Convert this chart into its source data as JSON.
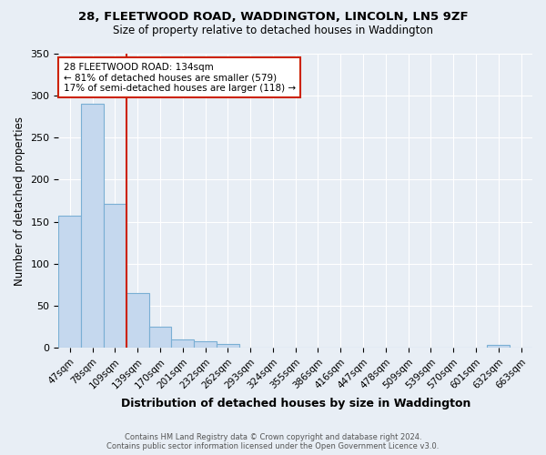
{
  "title": "28, FLEETWOOD ROAD, WADDINGTON, LINCOLN, LN5 9ZF",
  "subtitle": "Size of property relative to detached houses in Waddington",
  "xlabel": "Distribution of detached houses by size in Waddington",
  "ylabel": "Number of detached properties",
  "footnote1": "Contains HM Land Registry data © Crown copyright and database right 2024.",
  "footnote2": "Contains public sector information licensed under the Open Government Licence v3.0.",
  "annotation_line1": "28 FLEETWOOD ROAD: 134sqm",
  "annotation_line2": "← 81% of detached houses are smaller (579)",
  "annotation_line3": "17% of semi-detached houses are larger (118) →",
  "bar_labels": [
    "47sqm",
    "78sqm",
    "109sqm",
    "139sqm",
    "170sqm",
    "201sqm",
    "232sqm",
    "262sqm",
    "293sqm",
    "324sqm",
    "355sqm",
    "386sqm",
    "416sqm",
    "447sqm",
    "478sqm",
    "509sqm",
    "539sqm",
    "570sqm",
    "601sqm",
    "632sqm",
    "663sqm"
  ],
  "bar_values": [
    157,
    290,
    171,
    65,
    25,
    10,
    8,
    4,
    0,
    0,
    0,
    0,
    0,
    0,
    0,
    0,
    0,
    0,
    0,
    3,
    0
  ],
  "bar_color": "#c5d8ee",
  "bar_edgecolor": "#7aafd4",
  "background_color": "#e8eef5",
  "plot_bg_color": "#e8eef5",
  "grid_color": "#ffffff",
  "vline_color": "#cc2200",
  "ylim": [
    0,
    350
  ],
  "yticks": [
    0,
    50,
    100,
    150,
    200,
    250,
    300,
    350
  ]
}
